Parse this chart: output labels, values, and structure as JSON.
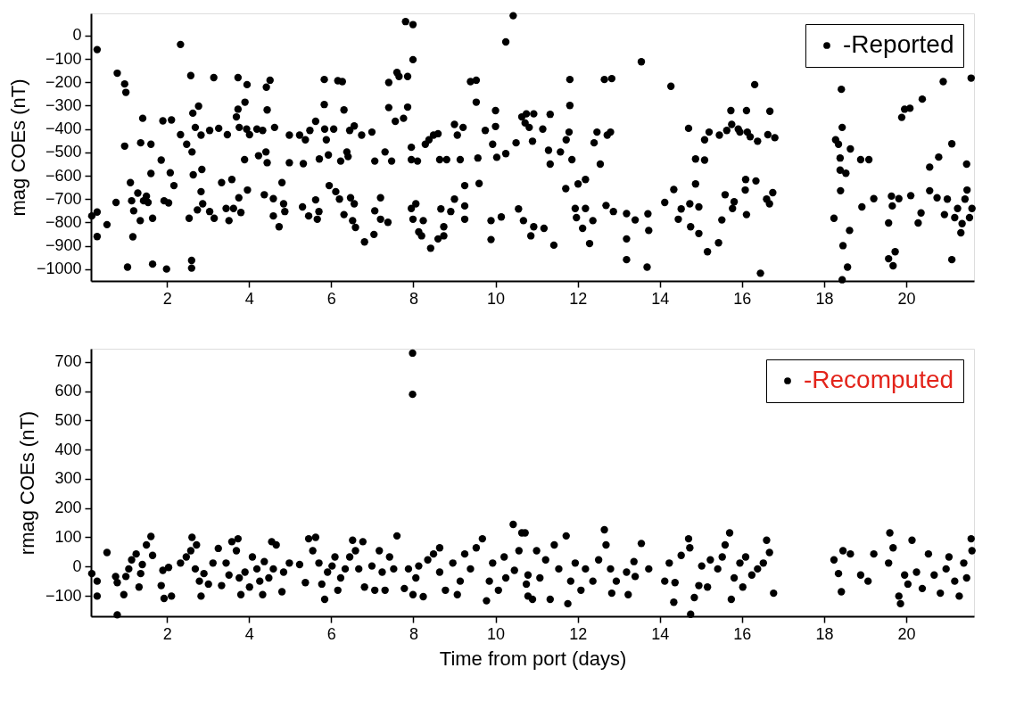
{
  "chart_data": [
    {
      "type": "scatter",
      "ylabel": "mag COEs (nT)",
      "xlim": [
        0.15,
        21.65
      ],
      "xticks": [
        2,
        4,
        6,
        8,
        10,
        12,
        14,
        16,
        18,
        20
      ],
      "ylim": [
        -1050,
        95
      ],
      "yticks": [
        0,
        -100,
        -200,
        -300,
        -400,
        -500,
        -600,
        -700,
        -800,
        -900,
        -1000
      ],
      "legend": "top right",
      "marker": "circle",
      "series": [
        {
          "name": "-Reported",
          "color": "#000000",
          "x": [
            0.17,
            0.3,
            0.3,
            0.3,
            0.54,
            0.76,
            0.79,
            0.97,
            1.0,
            0.97,
            1.04,
            1.11,
            1.14,
            1.17,
            1.19,
            1.29,
            1.35,
            1.36,
            1.41,
            1.43,
            1.5,
            1.54,
            1.61,
            1.61,
            1.65,
            1.65,
            1.86,
            1.9,
            1.93,
            1.99,
            2.04,
            2.08,
            2.11,
            2.17,
            2.33,
            2.33,
            2.48,
            2.54,
            2.58,
            2.6,
            2.6,
            2.61,
            2.63,
            2.64,
            2.69,
            2.74,
            2.77,
            2.83,
            2.83,
            2.85,
            2.87,
            3.04,
            3.04,
            3.14,
            3.15,
            3.26,
            3.33,
            3.44,
            3.47,
            3.51,
            3.58,
            3.62,
            3.69,
            3.73,
            3.73,
            3.75,
            3.76,
            3.8,
            3.89,
            3.9,
            3.94,
            3.95,
            3.96,
            4.01,
            4.19,
            4.23,
            4.33,
            4.37,
            4.41,
            4.42,
            4.44,
            4.44,
            4.51,
            4.59,
            4.59,
            4.62,
            4.73,
            4.8,
            4.84,
            4.87,
            4.98,
            4.98,
            5.23,
            5.3,
            5.32,
            5.37,
            5.45,
            5.48,
            5.62,
            5.62,
            5.66,
            5.7,
            5.71,
            5.83,
            5.83,
            5.84,
            5.88,
            5.93,
            5.95,
            6.06,
            6.11,
            6.16,
            6.2,
            6.23,
            6.27,
            6.31,
            6.31,
            6.38,
            6.41,
            6.45,
            6.47,
            6.52,
            6.56,
            6.56,
            6.59,
            6.74,
            6.81,
            6.99,
            7.04,
            7.06,
            7.06,
            7.2,
            7.2,
            7.31,
            7.38,
            7.4,
            7.4,
            7.47,
            7.56,
            7.6,
            7.65,
            7.76,
            7.81,
            7.86,
            7.86,
            7.95,
            7.95,
            7.95,
            7.99,
            7.99,
            7.99,
            8.06,
            8.1,
            8.13,
            8.2,
            8.24,
            8.29,
            8.38,
            8.42,
            8.49,
            8.6,
            8.6,
            8.64,
            8.67,
            8.74,
            8.74,
            8.81,
            8.91,
            9.0,
            9.0,
            9.07,
            9.14,
            9.21,
            9.25,
            9.25,
            9.25,
            9.39,
            9.53,
            9.53,
            9.57,
            9.6,
            9.75,
            9.89,
            9.89,
            9.93,
            10.0,
            10.0,
            10.03,
            10.14,
            10.25,
            10.25,
            10.43,
            10.5,
            10.56,
            10.64,
            10.68,
            10.75,
            10.82,
            10.72,
            10.93,
            10.9,
            10.86,
            10.93,
            11.15,
            11.18,
            11.33,
            11.29,
            11.33,
            11.42,
            11.58,
            11.71,
            11.72,
            11.79,
            11.81,
            11.81,
            11.86,
            11.94,
            11.97,
            12.01,
            12.12,
            12.19,
            12.19,
            12.29,
            12.37,
            12.4,
            12.47,
            12.55,
            12.65,
            12.69,
            12.72,
            12.8,
            12.83,
            12.87,
            13.19,
            13.19,
            13.19,
            13.4,
            13.55,
            13.69,
            13.71,
            13.73,
            14.12,
            14.27,
            14.34,
            14.45,
            14.52,
            14.7,
            14.73,
            14.75,
            14.87,
            14.87,
            14.95,
            14.95,
            15.09,
            15.09,
            15.16,
            15.2,
            15.43,
            15.45,
            15.51,
            15.59,
            15.63,
            15.73,
            15.75,
            15.77,
            15.81,
            15.91,
            15.95,
            16.08,
            16.09,
            16.11,
            16.11,
            16.13,
            16.2,
            16.31,
            16.34,
            16.38,
            16.45,
            16.6,
            16.63,
            16.67,
            16.68,
            16.75,
            16.8,
            18.24,
            18.28,
            18.35,
            18.39,
            18.4,
            18.42,
            18.44,
            18.44,
            18.39,
            18.46,
            18.53,
            18.57,
            18.62,
            18.64,
            18.89,
            18.92,
            19.09,
            19.21,
            19.57,
            19.57,
            19.64,
            19.66,
            19.68,
            19.73,
            19.82,
            19.89,
            19.96,
            20.09,
            20.11,
            20.29,
            20.36,
            20.39,
            20.57,
            20.57,
            20.75,
            20.79,
            20.9,
            20.93,
            21.0,
            21.11,
            21.11,
            21.18,
            21.25,
            21.33,
            21.36,
            21.43,
            21.47,
            21.48,
            21.54,
            21.58,
            21.6
          ],
          "values": [
            -772,
            -60,
            -755,
            -860,
            -809,
            -714,
            -161,
            -207,
            -243,
            -473,
            -991,
            -629,
            -707,
            -861,
            -750,
            -674,
            -792,
            -459,
            -354,
            -707,
            -687,
            -714,
            -465,
            -590,
            -782,
            -978,
            -533,
            -365,
            -707,
            -999,
            -716,
            -587,
            -361,
            -642,
            -38,
            -424,
            -465,
            -782,
            -171,
            -962,
            -995,
            -498,
            -332,
            -596,
            -393,
            -746,
            -302,
            -426,
            -668,
            -573,
            -720,
            -406,
            -753,
            -180,
            -782,
            -397,
            -629,
            -740,
            -424,
            -792,
            -616,
            -740,
            -348,
            -180,
            -315,
            -694,
            -393,
            -757,
            -531,
            -285,
            -400,
            -210,
            -661,
            -424,
            -400,
            -514,
            -406,
            -681,
            -498,
            -221,
            -544,
            -318,
            -191,
            -698,
            -772,
            -393,
            -818,
            -629,
            -720,
            -753,
            -426,
            -544,
            -426,
            -733,
            -548,
            -446,
            -772,
            -406,
            -367,
            -703,
            -786,
            -753,
            -528,
            -188,
            -295,
            -400,
            -446,
            -511,
            -642,
            -400,
            -668,
            -193,
            -700,
            -537,
            -197,
            -318,
            -766,
            -498,
            -518,
            -406,
            -694,
            -792,
            -387,
            -720,
            -821,
            -426,
            -883,
            -413,
            -851,
            -537,
            -750,
            -694,
            -786,
            -498,
            -799,
            -201,
            -308,
            -537,
            -367,
            -158,
            -175,
            -354,
            60,
            -175,
            -306,
            -478,
            -531,
            -740,
            47,
            -103,
            -786,
            -720,
            -537,
            -840,
            -857,
            -792,
            -465,
            -446,
            -910,
            -426,
            -420,
            -870,
            -531,
            -742,
            -818,
            -857,
            -531,
            -753,
            -380,
            -700,
            -426,
            -531,
            -393,
            -642,
            -729,
            -786,
            -197,
            -191,
            -285,
            -524,
            -633,
            -406,
            -792,
            -873,
            -465,
            -321,
            -389,
            -521,
            -776,
            -27,
            -505,
            85,
            -459,
            -742,
            -348,
            -792,
            -335,
            -393,
            -374,
            -335,
            -452,
            -857,
            -818,
            -400,
            -825,
            -337,
            -491,
            -550,
            -897,
            -498,
            -655,
            -446,
            -413,
            -188,
            -299,
            -531,
            -740,
            -779,
            -635,
            -825,
            -616,
            -740,
            -890,
            -792,
            -459,
            -413,
            -550,
            -188,
            -727,
            -426,
            -413,
            -184,
            -753,
            -762,
            -870,
            -959,
            -789,
            -112,
            -991,
            -763,
            -834,
            -714,
            -217,
            -659,
            -786,
            -742,
            -397,
            -720,
            -818,
            -528,
            -635,
            -733,
            -847,
            -533,
            -446,
            -925,
            -413,
            -887,
            -426,
            -789,
            -681,
            -406,
            -321,
            -380,
            -740,
            -711,
            -400,
            -413,
            -661,
            -616,
            -321,
            -766,
            -413,
            -433,
            -210,
            -622,
            -452,
            -1017,
            -700,
            -424,
            -720,
            -324,
            -672,
            -437,
            -782,
            -446,
            -465,
            -524,
            -664,
            -230,
            -393,
            -1045,
            -576,
            -899,
            -589,
            -991,
            -834,
            -485,
            -531,
            -733,
            -531,
            -698,
            -802,
            -955,
            -687,
            -729,
            -985,
            -925,
            -698,
            -350,
            -315,
            -311,
            -685,
            -802,
            -759,
            -272,
            -563,
            -664,
            -694,
            -520,
            -197,
            -766,
            -700,
            -463,
            -959,
            -779,
            -740,
            -844,
            -805,
            -700,
            -550,
            -661,
            -779,
            -182,
            -740
          ]
        }
      ]
    },
    {
      "type": "scatter",
      "xlabel": "Time from port (days)",
      "ylabel": "rmag COEs (nT)",
      "xlim": [
        0.15,
        21.65
      ],
      "xticks": [
        2,
        4,
        6,
        8,
        10,
        12,
        14,
        16,
        18,
        20
      ],
      "ylim": [
        -170,
        745
      ],
      "yticks": [
        -100,
        0,
        100,
        200,
        300,
        400,
        500,
        600,
        700
      ],
      "legend": "top right",
      "marker": "circle",
      "series": [
        {
          "name": "-Recomputed",
          "color": "#000000",
          "x": [
            0.17,
            0.3,
            0.3,
            0.54,
            0.79,
            0.75,
            0.79,
            0.95,
            1.0,
            1.07,
            1.14,
            1.25,
            1.32,
            1.36,
            1.4,
            1.5,
            1.61,
            1.65,
            1.86,
            1.9,
            1.93,
            2.04,
            2.11,
            2.33,
            2.47,
            2.58,
            2.61,
            2.69,
            2.72,
            2.79,
            2.83,
            2.9,
            3.01,
            3.12,
            3.25,
            3.33,
            3.44,
            3.51,
            3.58,
            3.69,
            3.73,
            3.76,
            3.8,
            3.9,
            4.01,
            4.08,
            4.19,
            4.26,
            4.33,
            4.37,
            4.48,
            4.55,
            4.59,
            4.66,
            4.8,
            4.84,
            4.98,
            5.23,
            5.37,
            5.45,
            5.55,
            5.62,
            5.7,
            5.77,
            5.84,
            5.91,
            6.02,
            6.09,
            6.16,
            6.23,
            6.34,
            6.45,
            6.52,
            6.59,
            6.67,
            6.77,
            6.81,
            6.99,
            7.06,
            7.17,
            7.24,
            7.31,
            7.42,
            7.52,
            7.6,
            7.78,
            7.88,
            7.98,
            7.98,
            7.99,
            8.06,
            8.13,
            8.24,
            8.35,
            8.49,
            8.64,
            8.64,
            8.78,
            8.96,
            9.07,
            9.14,
            9.25,
            9.39,
            9.53,
            9.68,
            9.78,
            9.85,
            9.93,
            10.07,
            10.21,
            10.25,
            10.43,
            10.46,
            10.57,
            10.64,
            10.75,
            10.79,
            10.72,
            10.79,
            10.9,
            11.0,
            11.08,
            11.22,
            11.33,
            11.43,
            11.54,
            11.72,
            11.76,
            11.83,
            11.94,
            12.08,
            12.19,
            12.37,
            12.51,
            12.65,
            12.69,
            12.8,
            12.83,
            12.94,
            13.19,
            13.23,
            13.37,
            13.4,
            13.55,
            13.73,
            14.12,
            14.23,
            14.34,
            14.37,
            14.52,
            14.7,
            14.73,
            14.75,
            14.84,
            14.95,
            15.02,
            15.16,
            15.23,
            15.41,
            15.52,
            15.59,
            15.7,
            15.74,
            15.81,
            15.95,
            16.02,
            16.09,
            16.24,
            16.38,
            16.52,
            16.6,
            16.67,
            16.77,
            18.24,
            18.35,
            18.42,
            18.46,
            18.64,
            18.89,
            19.07,
            19.21,
            19.57,
            19.6,
            19.68,
            19.82,
            19.86,
            19.96,
            20.04,
            20.14,
            20.25,
            20.39,
            20.54,
            20.68,
            20.83,
            20.97,
            21.04,
            21.18,
            21.29,
            21.4,
            21.47,
            21.58,
            21.6
          ],
          "values": [
            -24,
            -50,
            -101,
            48,
            -165,
            -34,
            -55,
            -96,
            -34,
            -8,
            23,
            43,
            -70,
            -24,
            7,
            74,
            103,
            38,
            -65,
            -13,
            -109,
            -3,
            -101,
            12,
            33,
            54,
            100,
            -8,
            74,
            -50,
            -101,
            -24,
            -60,
            12,
            62,
            -65,
            12,
            -29,
            85,
            54,
            95,
            -39,
            -96,
            -19,
            -70,
            33,
            -8,
            -50,
            -96,
            17,
            -39,
            85,
            -8,
            74,
            -86,
            -19,
            12,
            7,
            -55,
            95,
            54,
            100,
            12,
            -60,
            -112,
            -19,
            2,
            33,
            -81,
            -39,
            -8,
            33,
            90,
            54,
            -8,
            85,
            -70,
            2,
            -81,
            54,
            -19,
            -81,
            33,
            -8,
            105,
            -75,
            -8,
            730,
            589,
            -96,
            -39,
            2,
            -103,
            23,
            43,
            64,
            -19,
            -81,
            12,
            -96,
            -50,
            43,
            -8,
            64,
            95,
            -117,
            -50,
            12,
            -81,
            33,
            -39,
            144,
            -13,
            54,
            115,
            -60,
            -101,
            115,
            -29,
            -112,
            54,
            -39,
            23,
            -112,
            74,
            -8,
            105,
            -127,
            -50,
            12,
            -81,
            -8,
            -50,
            23,
            126,
            74,
            -8,
            -91,
            -50,
            -19,
            -96,
            17,
            -34,
            79,
            -8,
            -50,
            12,
            -122,
            -55,
            38,
            95,
            64,
            -163,
            -106,
            -65,
            2,
            -70,
            23,
            -8,
            33,
            74,
            115,
            -112,
            -39,
            12,
            -70,
            33,
            -29,
            -8,
            12,
            90,
            48,
            -91,
            23,
            -24,
            -86,
            54,
            43,
            -29,
            -50,
            43,
            12,
            115,
            64,
            -101,
            -127,
            -29,
            -60,
            90,
            -19,
            -75,
            43,
            -29,
            -91,
            -8,
            33,
            -50,
            -101,
            12,
            -39,
            95,
            54
          ]
        }
      ]
    }
  ]
}
